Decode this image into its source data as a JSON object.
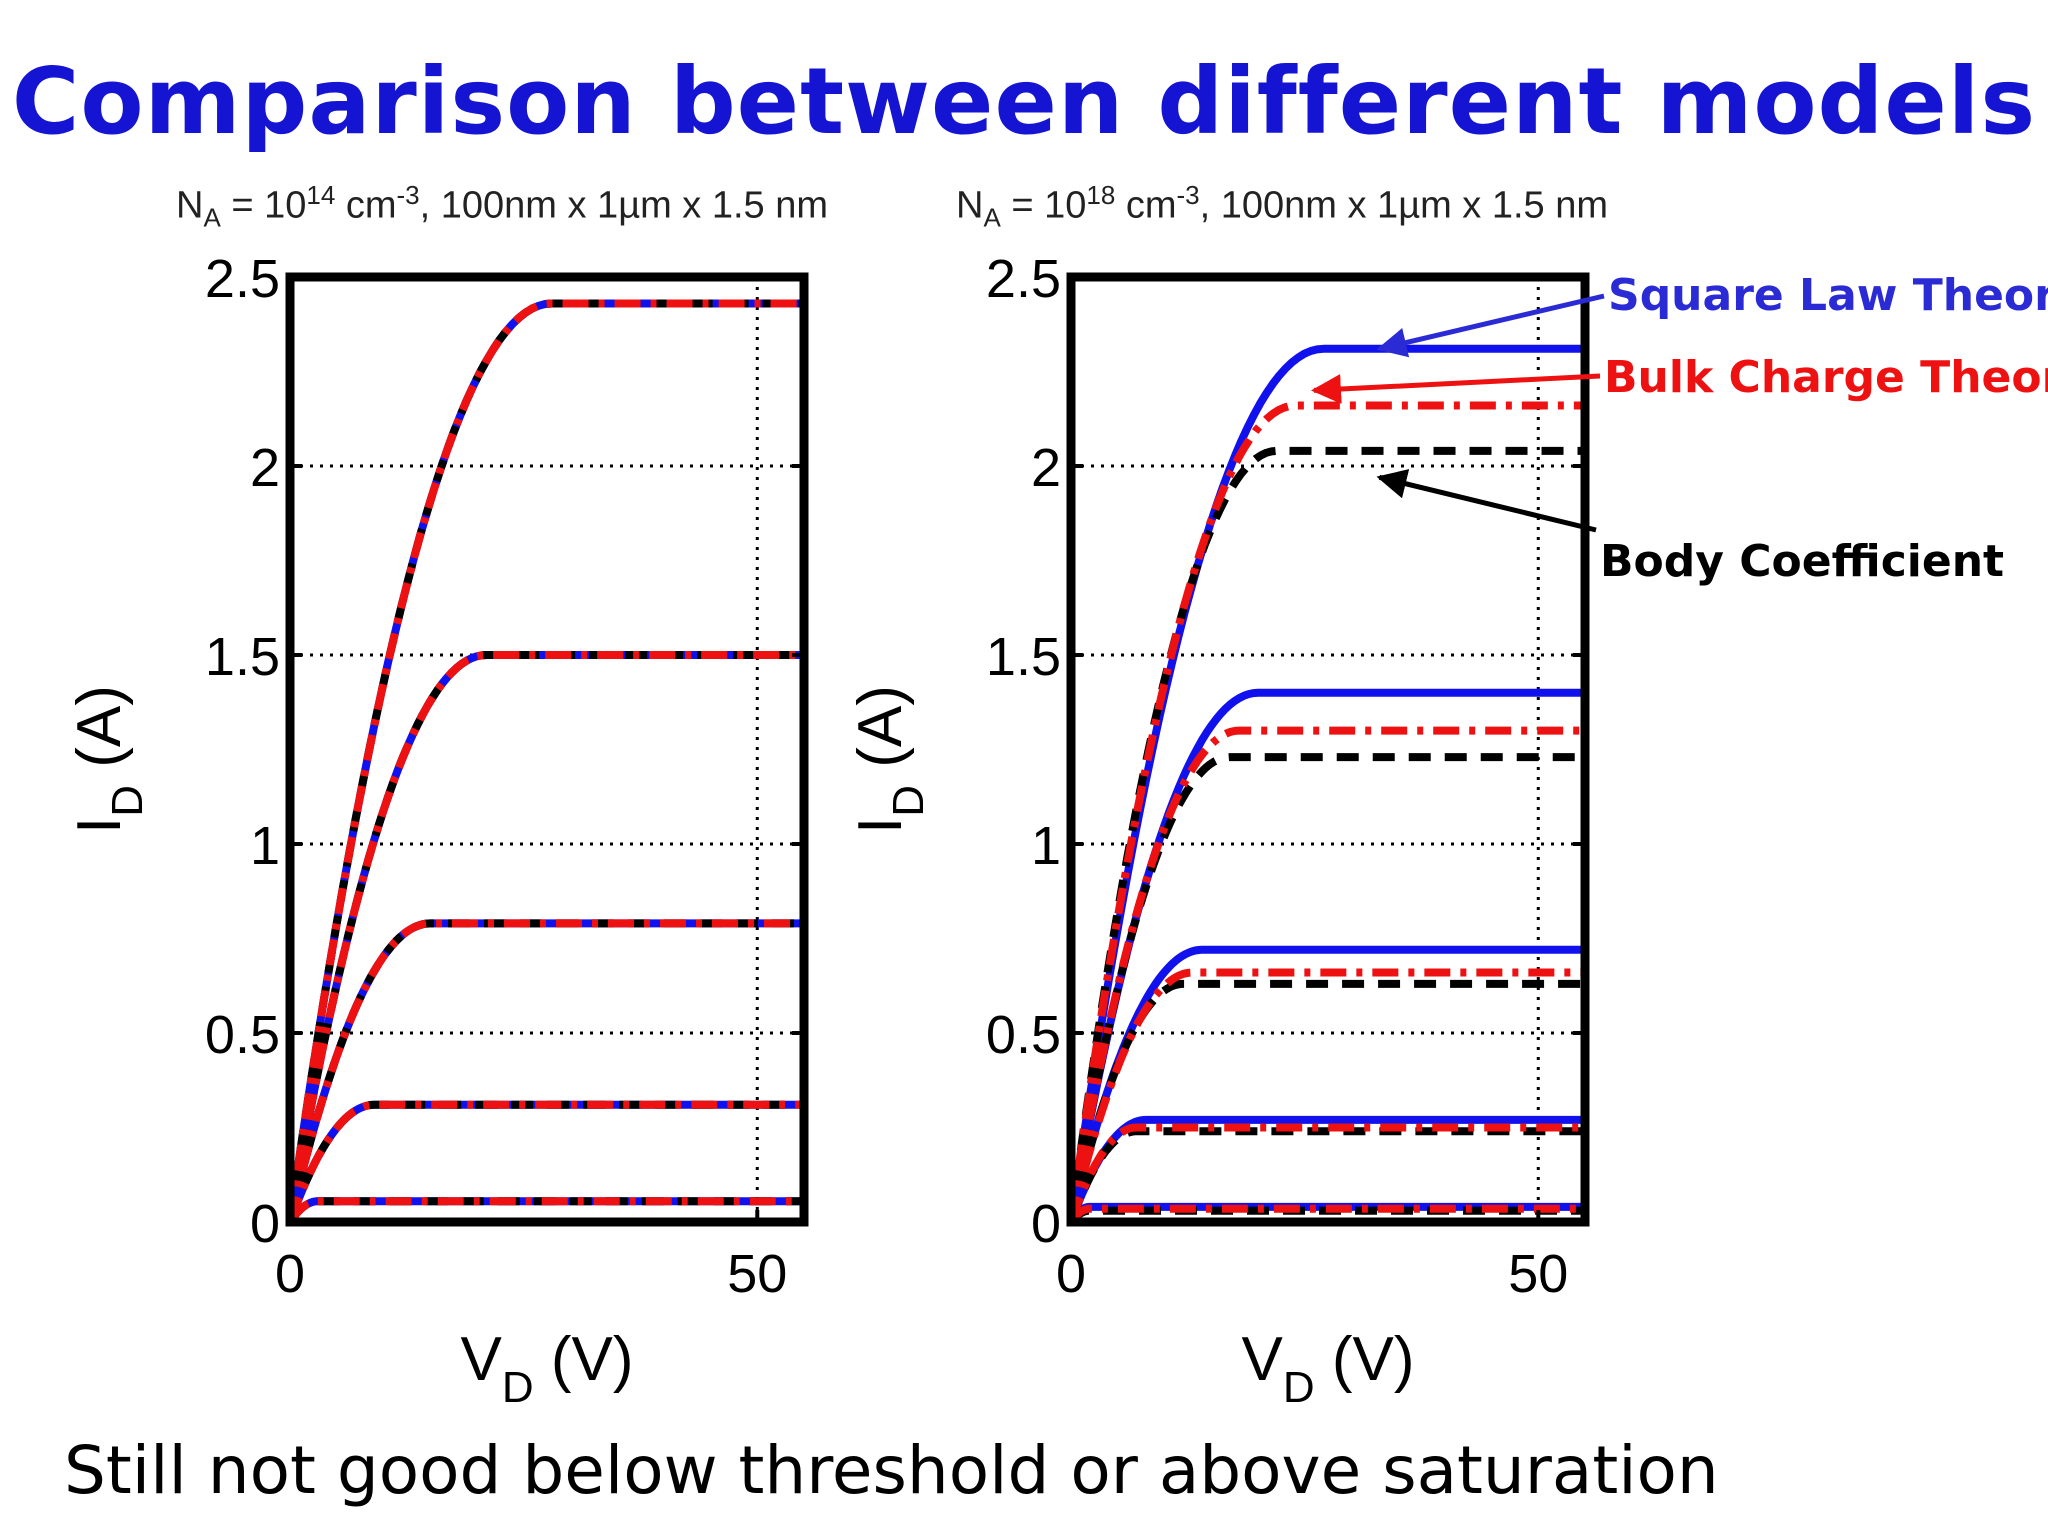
{
  "slide": {
    "title": "Comparison between different models",
    "footer": "Still not good below threshold or above saturation"
  },
  "annotations": [
    {
      "text": "Square Law Theory",
      "color": "#2b2bd6"
    },
    {
      "text": "Bulk Charge Theory",
      "color": "#ee1111"
    },
    {
      "text": "Body Coefficient",
      "color": "#000000"
    }
  ],
  "colors": {
    "square_law": "#1111ee",
    "bulk_charge": "#ee1111",
    "body_coefficient": "#000000",
    "title": "#1414d2"
  },
  "chart_data": [
    {
      "type": "line",
      "subtitle": {
        "na_base": "N",
        "na_sub": "A",
        "eq": " = 10",
        "exp": "14",
        "unit": " cm",
        "unit_exp": "-3",
        "rest": ", 100nm x 1µm x 1.5 nm"
      },
      "xlabel": {
        "main": "V",
        "sub": "D",
        "unit": " (V)"
      },
      "ylabel": {
        "main": "I",
        "sub": "D",
        "unit": " (A)"
      },
      "xlim": [
        0,
        55
      ],
      "ylim": [
        0,
        2.5
      ],
      "xticks": [
        0,
        50
      ],
      "yticks": [
        0,
        0.5,
        1,
        1.5,
        2,
        2.5
      ],
      "ytick_labels": [
        "0",
        "0.5",
        "1",
        "1.5",
        "2",
        "2.5"
      ],
      "xtick_labels": [
        "0",
        "50"
      ],
      "grid": "dotted",
      "series": [
        {
          "curves": [
            {
              "vsat": 28,
              "isat": 2.43
            },
            {
              "vsat": 21,
              "isat": 1.5
            },
            {
              "vsat": 15,
              "isat": 0.79
            },
            {
              "vsat": 9,
              "isat": 0.31
            },
            {
              "vsat": 3,
              "isat": 0.055
            }
          ],
          "style": "square_law"
        },
        {
          "curves": [
            {
              "vsat": 28,
              "isat": 2.43
            },
            {
              "vsat": 21,
              "isat": 1.5
            },
            {
              "vsat": 15,
              "isat": 0.79
            },
            {
              "vsat": 9,
              "isat": 0.31
            },
            {
              "vsat": 3,
              "isat": 0.055
            }
          ],
          "style": "body_coefficient"
        },
        {
          "curves": [
            {
              "vsat": 28,
              "isat": 2.43
            },
            {
              "vsat": 21,
              "isat": 1.5
            },
            {
              "vsat": 15,
              "isat": 0.79
            },
            {
              "vsat": 9,
              "isat": 0.31
            },
            {
              "vsat": 3,
              "isat": 0.055
            }
          ],
          "style": "bulk_charge"
        }
      ]
    },
    {
      "type": "line",
      "subtitle": {
        "na_base": "N",
        "na_sub": "A",
        "eq": " = 10",
        "exp": "18",
        "unit": " cm",
        "unit_exp": "-3",
        "rest": ", 100nm x 1µm x 1.5 nm"
      },
      "xlabel": {
        "main": "V",
        "sub": "D",
        "unit": " (V)"
      },
      "ylabel": {
        "main": "I",
        "sub": "D",
        "unit": " (A)"
      },
      "xlim": [
        0,
        55
      ],
      "ylim": [
        0,
        2.5
      ],
      "xticks": [
        0,
        50
      ],
      "yticks": [
        0,
        0.5,
        1,
        1.5,
        2,
        2.5
      ],
      "ytick_labels": [
        "0",
        "0.5",
        "1",
        "1.5",
        "2",
        "2.5"
      ],
      "xtick_labels": [
        "0",
        "50"
      ],
      "grid": "dotted",
      "series": [
        {
          "curves": [
            {
              "vsat": 27,
              "isat": 2.31
            },
            {
              "vsat": 20,
              "isat": 1.4
            },
            {
              "vsat": 14,
              "isat": 0.72
            },
            {
              "vsat": 8,
              "isat": 0.27
            },
            {
              "vsat": 2,
              "isat": 0.04
            }
          ],
          "style": "square_law"
        },
        {
          "curves": [
            {
              "vsat": 22,
              "isat": 2.04
            },
            {
              "vsat": 17,
              "isat": 1.23
            },
            {
              "vsat": 12,
              "isat": 0.63
            },
            {
              "vsat": 7,
              "isat": 0.24
            },
            {
              "vsat": 2,
              "isat": 0.03
            }
          ],
          "style": "body_coefficient"
        },
        {
          "curves": [
            {
              "vsat": 24,
              "isat": 2.16
            },
            {
              "vsat": 18,
              "isat": 1.3
            },
            {
              "vsat": 13,
              "isat": 0.66
            },
            {
              "vsat": 7,
              "isat": 0.25
            },
            {
              "vsat": 2,
              "isat": 0.035
            }
          ],
          "style": "bulk_charge"
        }
      ]
    }
  ]
}
